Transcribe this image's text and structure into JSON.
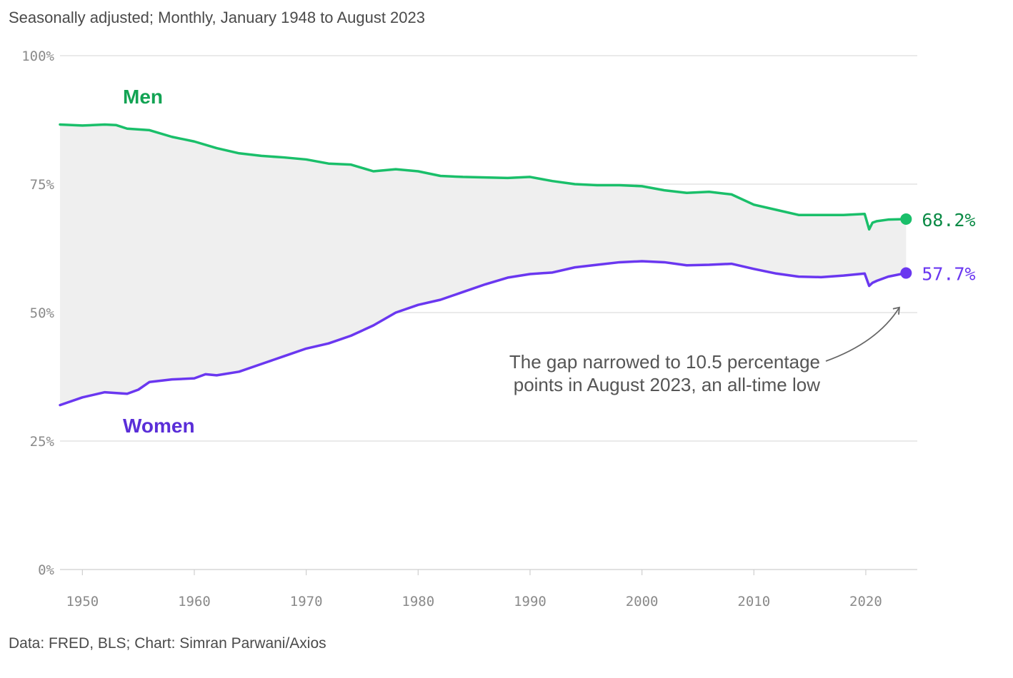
{
  "subtitle": "Seasonally adjusted; Monthly, January 1948 to August 2023",
  "source": "Data: FRED, BLS; Chart: Simran Parwani/Axios",
  "chart_data": {
    "type": "line",
    "title": "",
    "xlabel": "",
    "ylabel": "",
    "xlim": [
      1948,
      2024.6
    ],
    "ylim": [
      0,
      100
    ],
    "grid": true,
    "y_ticks": [
      {
        "value": 100,
        "label": "100%"
      },
      {
        "value": 75,
        "label": "75%"
      },
      {
        "value": 50,
        "label": "50%"
      },
      {
        "value": 25,
        "label": "25%"
      },
      {
        "value": 0,
        "label": "0%"
      }
    ],
    "x_ticks": [
      {
        "value": 1950,
        "label": "1950"
      },
      {
        "value": 1960,
        "label": "1960"
      },
      {
        "value": 1970,
        "label": "1970"
      },
      {
        "value": 1980,
        "label": "1980"
      },
      {
        "value": 1990,
        "label": "1990"
      },
      {
        "value": 2000,
        "label": "2000"
      },
      {
        "value": 2010,
        "label": "2010"
      },
      {
        "value": 2020,
        "label": "2020"
      }
    ],
    "series": [
      {
        "name": "Men",
        "color": "#1abf6a",
        "label_color": "#12a353",
        "end_label": "68.2%",
        "end_label_color": "#0a8a45",
        "x": [
          1948,
          1950,
          1952,
          1953,
          1954,
          1956,
          1958,
          1960,
          1962,
          1964,
          1966,
          1968,
          1970,
          1972,
          1974,
          1976,
          1978,
          1980,
          1982,
          1984,
          1986,
          1988,
          1990,
          1992,
          1994,
          1996,
          1998,
          2000,
          2002,
          2004,
          2006,
          2008,
          2010,
          2012,
          2014,
          2016,
          2018,
          2019.9,
          2020.3,
          2020.6,
          2021,
          2022,
          2023.6
        ],
        "y": [
          86.6,
          86.4,
          86.6,
          86.5,
          85.8,
          85.5,
          84.2,
          83.3,
          82.0,
          81.0,
          80.5,
          80.2,
          79.8,
          79.0,
          78.8,
          77.5,
          77.9,
          77.5,
          76.6,
          76.4,
          76.3,
          76.2,
          76.4,
          75.6,
          75.0,
          74.8,
          74.8,
          74.6,
          73.8,
          73.3,
          73.5,
          73.0,
          71.0,
          70.0,
          69.0,
          69.0,
          69.0,
          69.2,
          66.2,
          67.5,
          67.8,
          68.1,
          68.2
        ]
      },
      {
        "name": "Women",
        "color": "#6a37f0",
        "label_color": "#5a2ed8",
        "end_label": "57.7%",
        "end_label_color": "#6a37f0",
        "x": [
          1948,
          1950,
          1952,
          1954,
          1955,
          1956,
          1958,
          1960,
          1961,
          1962,
          1964,
          1966,
          1968,
          1970,
          1972,
          1974,
          1976,
          1978,
          1980,
          1982,
          1984,
          1986,
          1988,
          1990,
          1992,
          1994,
          1996,
          1998,
          2000,
          2002,
          2004,
          2006,
          2008,
          2010,
          2012,
          2014,
          2016,
          2018,
          2019.9,
          2020.3,
          2020.6,
          2021,
          2022,
          2023.6
        ],
        "y": [
          32.0,
          33.5,
          34.5,
          34.2,
          35.0,
          36.5,
          37.0,
          37.2,
          38.0,
          37.8,
          38.5,
          40.0,
          41.5,
          43.0,
          44.0,
          45.5,
          47.5,
          50.0,
          51.5,
          52.5,
          54.0,
          55.5,
          56.8,
          57.5,
          57.8,
          58.8,
          59.3,
          59.8,
          60.0,
          59.8,
          59.2,
          59.3,
          59.5,
          58.5,
          57.6,
          57.0,
          56.9,
          57.2,
          57.6,
          55.2,
          55.8,
          56.2,
          57.0,
          57.7
        ]
      }
    ],
    "annotation": {
      "lines": [
        "The gap narrowed to 10.5 percentage",
        "points in August 2023, an all-time low"
      ],
      "arrow_target": [
        2023.0,
        51
      ]
    }
  }
}
